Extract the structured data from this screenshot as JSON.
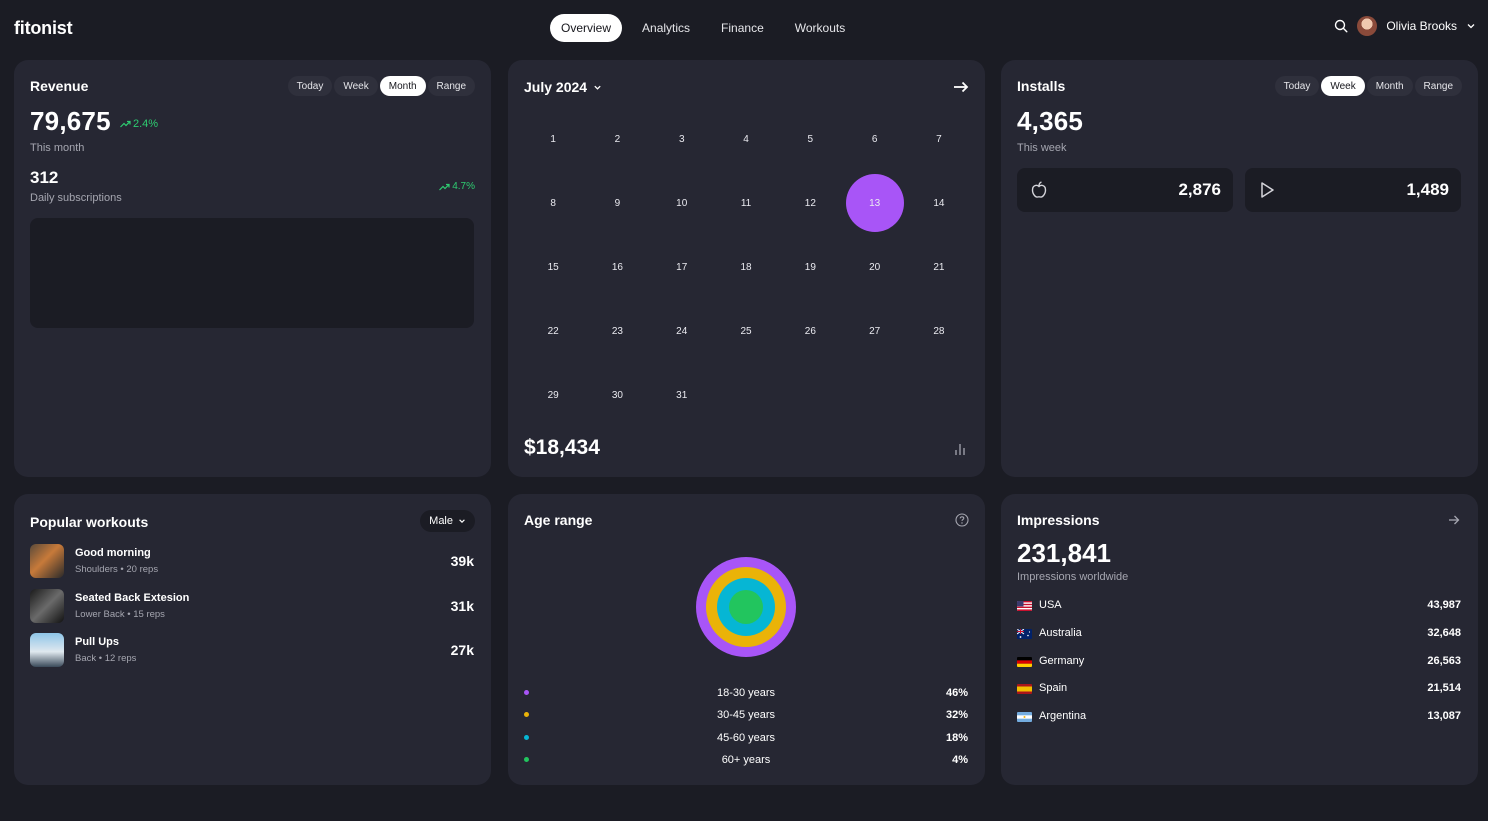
{
  "app": {
    "logo": "fitonist"
  },
  "nav": {
    "tabs": [
      {
        "label": "Overview",
        "active": true
      },
      {
        "label": "Analytics",
        "active": false
      },
      {
        "label": "Finance",
        "active": false
      },
      {
        "label": "Workouts",
        "active": false
      }
    ]
  },
  "user": {
    "name": "Olivia Brooks"
  },
  "revenue": {
    "title": "Revenue",
    "ranges": [
      "Today",
      "Week",
      "Month",
      "Range"
    ],
    "active_range": "Month",
    "value": "79,675",
    "trend": "2.4%",
    "period": "This month",
    "daily_value": "312",
    "daily_label": "Daily subscriptions",
    "daily_trend": "4.7%"
  },
  "calendar": {
    "month": "July 2024",
    "days": [
      "1",
      "2",
      "3",
      "4",
      "5",
      "6",
      "7",
      "8",
      "9",
      "10",
      "11",
      "12",
      "13",
      "14",
      "15",
      "16",
      "17",
      "18",
      "19",
      "20",
      "21",
      "22",
      "23",
      "24",
      "25",
      "26",
      "27",
      "28",
      "29",
      "30",
      "31"
    ],
    "selected_day": "13",
    "total": "$18,434"
  },
  "installs": {
    "title": "Installs",
    "ranges": [
      "Today",
      "Week",
      "Month",
      "Range"
    ],
    "active_range": "Week",
    "value": "4,365",
    "period": "This week",
    "apple_value": "2,876",
    "play_value": "1,489"
  },
  "workouts": {
    "title": "Popular workouts",
    "filter": "Male",
    "items": [
      {
        "name": "Good morning",
        "meta": "Shoulders • 20 reps",
        "count": "39k"
      },
      {
        "name": "Seated Back Extesion",
        "meta": "Lower Back • 15 reps",
        "count": "31k"
      },
      {
        "name": "Pull Ups",
        "meta": "Back • 12 reps",
        "count": "27k"
      }
    ]
  },
  "age": {
    "title": "Age range",
    "rows": [
      {
        "label": "18-30 years",
        "pct": "46%",
        "color": "#a855f7"
      },
      {
        "label": "30-45 years",
        "pct": "32%",
        "color": "#eab308"
      },
      {
        "label": "45-60 years",
        "pct": "18%",
        "color": "#06b6d4"
      },
      {
        "label": "60+ years",
        "pct": "4%",
        "color": "#22c55e"
      }
    ]
  },
  "impressions": {
    "title": "Impressions",
    "value": "231,841",
    "subtitle": "Impressions worldwide",
    "countries": [
      {
        "name": "USA",
        "value": "43,987"
      },
      {
        "name": "Australia",
        "value": "32,648"
      },
      {
        "name": "Germany",
        "value": "26,563"
      },
      {
        "name": "Spain",
        "value": "21,514"
      },
      {
        "name": "Argentina",
        "value": "13,087"
      }
    ]
  },
  "colors": {
    "bg": "#1b1c24",
    "card": "#262733",
    "accent": "#a855f7",
    "positive": "#2ecc71"
  }
}
